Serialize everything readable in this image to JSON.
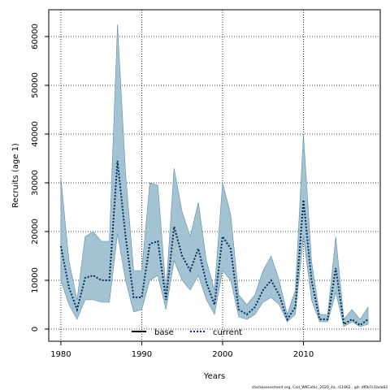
{
  "chart_data": {
    "type": "area",
    "title": "",
    "xlabel": "Years",
    "ylabel": "Recruits (age 1)",
    "xlim": [
      1978.5,
      2019.5
    ],
    "ylim": [
      -2500,
      65500
    ],
    "xticks": [
      1980,
      1990,
      2000,
      2010
    ],
    "yticks": [
      0,
      10000,
      20000,
      30000,
      40000,
      50000,
      60000
    ],
    "grid": true,
    "legend_position": "bottom-center",
    "x": [
      1980,
      1981,
      1982,
      1983,
      1984,
      1985,
      1986,
      1987,
      1988,
      1989,
      1990,
      1991,
      1992,
      1993,
      1994,
      1995,
      1996,
      1997,
      1998,
      1999,
      2000,
      2001,
      2002,
      2003,
      2004,
      2005,
      2006,
      2007,
      2008,
      2009,
      2010,
      2011,
      2012,
      2013,
      2014,
      2015,
      2016,
      2017,
      2018
    ],
    "band": {
      "name": "base",
      "color": "#a3c3d3",
      "upper": [
        31000,
        14000,
        6000,
        19000,
        20000,
        18000,
        18000,
        62500,
        32000,
        12000,
        12000,
        30000,
        29500,
        8000,
        33000,
        24000,
        19000,
        26000,
        14000,
        8000,
        30000,
        23500,
        7000,
        5000,
        7000,
        12000,
        15000,
        10000,
        3000,
        8000,
        40000,
        14000,
        3000,
        3000,
        19000,
        2000,
        4000,
        2000,
        4500
      ],
      "lower": [
        10000,
        5000,
        2000,
        6000,
        6000,
        5500,
        5500,
        19500,
        10000,
        3500,
        4000,
        10000,
        11000,
        4000,
        14000,
        10000,
        8000,
        11000,
        6000,
        3000,
        12000,
        10000,
        2500,
        2000,
        3000,
        5500,
        6500,
        5000,
        1500,
        3000,
        19000,
        6000,
        1500,
        1500,
        7500,
        500,
        1500,
        500,
        1000
      ]
    },
    "series": [
      {
        "name": "current",
        "style": "dotted",
        "color": "#002b5c",
        "values": [
          17000,
          8500,
          4000,
          10500,
          11000,
          10000,
          10000,
          34500,
          19000,
          6500,
          6500,
          17500,
          18000,
          6000,
          21000,
          15000,
          12000,
          16500,
          9500,
          5000,
          19000,
          16500,
          4000,
          3000,
          4500,
          8000,
          10000,
          7000,
          2000,
          4500,
          26500,
          10000,
          2000,
          2000,
          12500,
          1000,
          2000,
          800,
          2000
        ]
      }
    ],
    "legend": [
      {
        "label": "base",
        "style": "solid",
        "color": "#000000"
      },
      {
        "label": "current",
        "style": "dotted",
        "color": "#002b5c"
      }
    ]
  },
  "footnote": "stockassessment.org, Cod_WKCeltic_2020_4a, r11962 , git: df0b7c1bcb83"
}
